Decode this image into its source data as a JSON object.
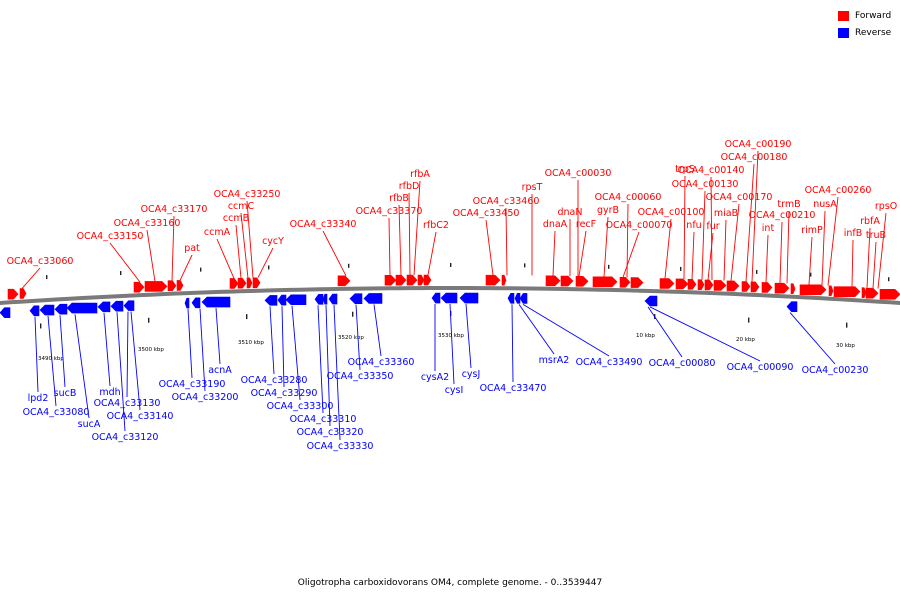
{
  "legend": {
    "forward_label": "Forward",
    "reverse_label": "Reverse",
    "forward_color": "#ff0000",
    "reverse_color": "#0000ff"
  },
  "caption": "Oligotropha carboxidovorans OM4, complete genome. - 0..3539447",
  "scale_labels": [
    "3490 kbp",
    "3500 kbp",
    "3510 kbp",
    "3520 kbp",
    "3530 kbp",
    "10 kbp",
    "20 kbp",
    "30 kbp"
  ],
  "forward_labels": [
    "OCA4_c33060",
    "OCA4_c33150",
    "OCA4_c33160",
    "OCA4_c33170",
    "pat",
    "ccmA",
    "ccmB",
    "ccmC",
    "OCA4_c33250",
    "cycY",
    "OCA4_c33340",
    "OCA4_c33370",
    "rfbB",
    "rfbD",
    "rfbA",
    "rfbC2",
    "OCA4_c33450",
    "OCA4_c33460",
    "rpsT",
    "dnaA",
    "dnaN",
    "recF",
    "OCA4_c00030",
    "gyrB",
    "OCA4_c00070",
    "OCA4_c00060",
    "OCA4_c00100",
    "trpS",
    "nfu",
    "OCA4_c00130",
    "fur",
    "OCA4_c00140",
    "miaB",
    "OCA4_c00170",
    "OCA4_c00180",
    "OCA4_c00190",
    "int",
    "OCA4_c00210",
    "rimP",
    "trmB",
    "nusA",
    "OCA4_c00260",
    "infB",
    "rbfA",
    "truB",
    "rpsO"
  ],
  "reverse_labels": [
    "lpd2",
    "sucB",
    "OCA4_c33080",
    "sucA",
    "mdh",
    "OCA4_c33120",
    "OCA4_c33130",
    "OCA4_c33140",
    "OCA4_c33190",
    "acnA",
    "OCA4_c33200",
    "OCA4_c33280",
    "OCA4_c33290",
    "OCA4_c33300",
    "OCA4_c33310",
    "OCA4_c33320",
    "OCA4_c33330",
    "OCA4_c33350",
    "OCA4_c33360",
    "cysA2",
    "cysI",
    "cysJ",
    "OCA4_c33470",
    "msrA2",
    "OCA4_c33490",
    "OCA4_c00080",
    "OCA4_c00090",
    "OCA4_c00230"
  ]
}
